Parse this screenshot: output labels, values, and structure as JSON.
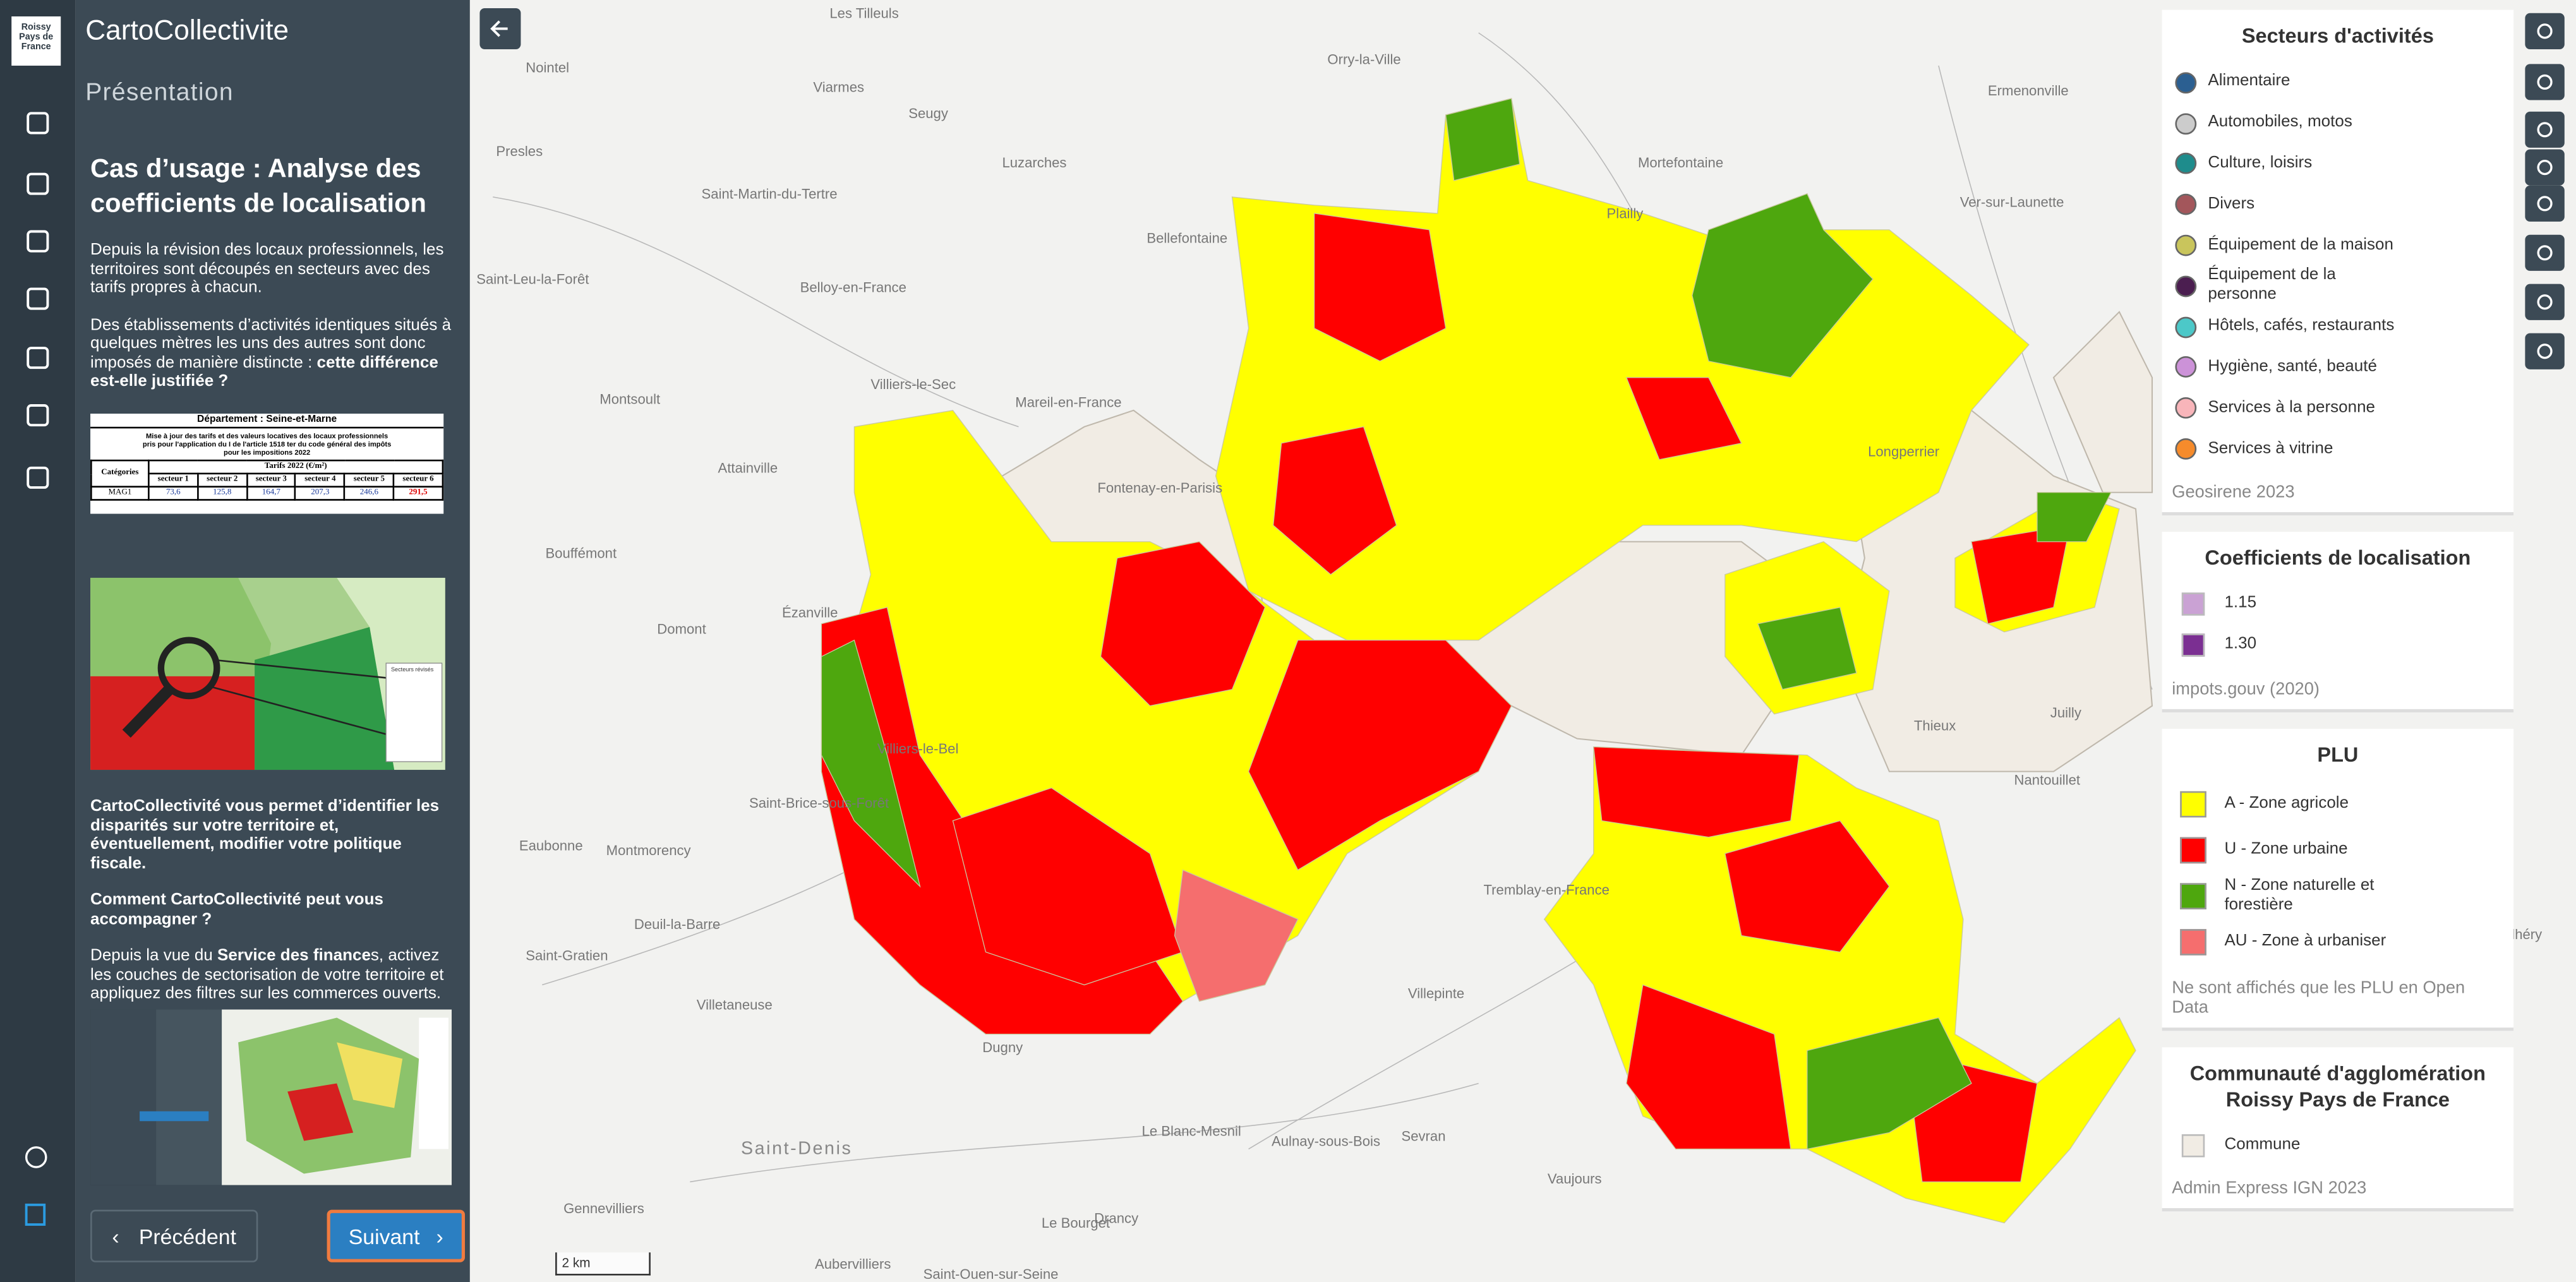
{
  "sidebar": {
    "logo": [
      "Roissy",
      "Pays de",
      "France"
    ]
  },
  "panel": {
    "app_title": "CartoCollectivite",
    "section": "Présentation",
    "heading": "Cas d’usage : Analyse des coefficients de localisation",
    "intro": [
      [
        {
          "text": "Depuis la révision des locaux professionnels, les territoires sont découpés en secteurs avec des tarifs propres à chacun."
        }
      ],
      [
        {
          "text": "Des établissements d’activités identiques situés à quelques mètres les uns des autres sont donc imposés de manière distincte : "
        },
        {
          "text": "cette différence est-elle justifiée ?",
          "bold": true
        }
      ]
    ],
    "table_image": {
      "department": "Département : Seine-et-Marne",
      "caption": "Mise à jour des tarifs et des valeurs locatives des locaux professionnels pris pour l'application du I de l'article 1518 ter du code général des impôts pour les impositions 2022",
      "row_header": "Catégories",
      "group_header": "Tarifs 2022 (€/m²)",
      "columns": [
        "secteur 1",
        "secteur 2",
        "secteur 3",
        "secteur 4",
        "secteur 5",
        "secteur 6"
      ],
      "rows": [
        {
          "label": "MAG1",
          "values": [
            "73,6",
            "125,8",
            "164,7",
            "207,3",
            "246,6",
            "291,5"
          ]
        }
      ]
    },
    "map_image": {
      "legend_title": "Secteurs révisés"
    },
    "outro": [
      [
        {
          "text": "CartoCollectivité vous permet d’identifier les disparités sur votre territoire et, éventuellement, modifier votre politique fiscale.",
          "bold": true
        }
      ],
      [
        {
          "text": "Comment CartoCollectivité peut vous accompagner ?",
          "bold": true
        }
      ],
      [
        {
          "text": "Depuis la vue du "
        },
        {
          "text": "Service des finance",
          "bold": true
        },
        {
          "text": "s, activez les couches de sectorisation de votre territoire et appliquez des filtres sur les commerces ouverts."
        }
      ]
    ],
    "buttons": {
      "previous": "Précédent",
      "next": "Suivant"
    }
  },
  "map": {
    "scale": "2 km",
    "places": [
      "Les Tilleuls",
      "Nointel",
      "Orry-la-Ville",
      "Viarmes",
      "Seugy",
      "Presles",
      "Luzarches",
      "Mortefontaine",
      "Ermenonville",
      "Saint-Martin-du-Tertre",
      "Bellefontaine",
      "Plailly",
      "Ver-sur-Launette",
      "Saint-Leu-la-Forêt",
      "Belloy-en-France",
      "Villiers-le-Sec",
      "Montsoult",
      "Mareil-en-France",
      "Fontenay-en-Parisis",
      "Attainville",
      "Bouffémont",
      "Domont",
      "Ézanville",
      "Longperrier",
      "Villiers-le-Bel",
      "Saint-Brice-sous-Forêt",
      "Eaubonne",
      "Montmorency",
      "Deuil-la-Barre",
      "Saint-Gratien",
      "Villetaneuse",
      "Tremblay-en-France",
      "Villepinte",
      "Thieux",
      "Juilly",
      "Nantouillet",
      "Dugny",
      "Saint-Denis",
      "Le Blanc-Mesnil",
      "Aulnay-sous-Bois",
      "Sevran",
      "Le Bourget",
      "Vaujours",
      "Drancy",
      "Gennevilliers",
      "Aubervilliers",
      "Saint-Ouen-sur-Seine",
      "Montlhéry"
    ]
  },
  "legend": [
    {
      "title": "Secteurs d'activités",
      "symbol": "circle",
      "items": [
        {
          "label": "Alimentaire",
          "color": "#2b5f91"
        },
        {
          "label": "Automobiles, motos",
          "color": "#cccccc"
        },
        {
          "label": "Culture, loisirs",
          "color": "#1e8c8c"
        },
        {
          "label": "Divers",
          "color": "#a3565b"
        },
        {
          "label": "Équipement de la maison",
          "color": "#c9c55c"
        },
        {
          "label": "Équipement de la personne",
          "color": "#4b1e50"
        },
        {
          "label": "Hôtels, cafés, restaurants",
          "color": "#4cc8c8"
        },
        {
          "label": "Hygiène, santé, beauté",
          "color": "#cc92d8"
        },
        {
          "label": "Services à la personne",
          "color": "#f8b5ba"
        },
        {
          "label": "Services à vitrine",
          "color": "#f68b2b"
        }
      ],
      "note": "Geosirene 2023"
    },
    {
      "title": "Coefficients de localisation",
      "symbol": "square",
      "items": [
        {
          "label": "1.15",
          "color": "#caa2d4"
        },
        {
          "label": "1.30",
          "color": "#7b2f92"
        }
      ],
      "note": "impots.gouv (2020)"
    },
    {
      "title": "PLU",
      "symbol": "big-square",
      "items": [
        {
          "label": "A - Zone agricole",
          "color": "#ffff00"
        },
        {
          "label": "U - Zone urbaine",
          "color": "#ff0000"
        },
        {
          "label": "N - Zone naturelle et forestière",
          "color": "#4ea70e"
        },
        {
          "label": "AU - Zone à urbaniser",
          "color": "#f56e6e"
        }
      ],
      "note": "Ne sont affichés que les PLU en Open Data"
    },
    {
      "title": "Communauté d'agglomération Roissy Pays de France",
      "symbol": "square",
      "items": [
        {
          "label": "Commune",
          "color": "#f1ece4"
        }
      ],
      "note": "Admin Express IGN 2023"
    }
  ]
}
